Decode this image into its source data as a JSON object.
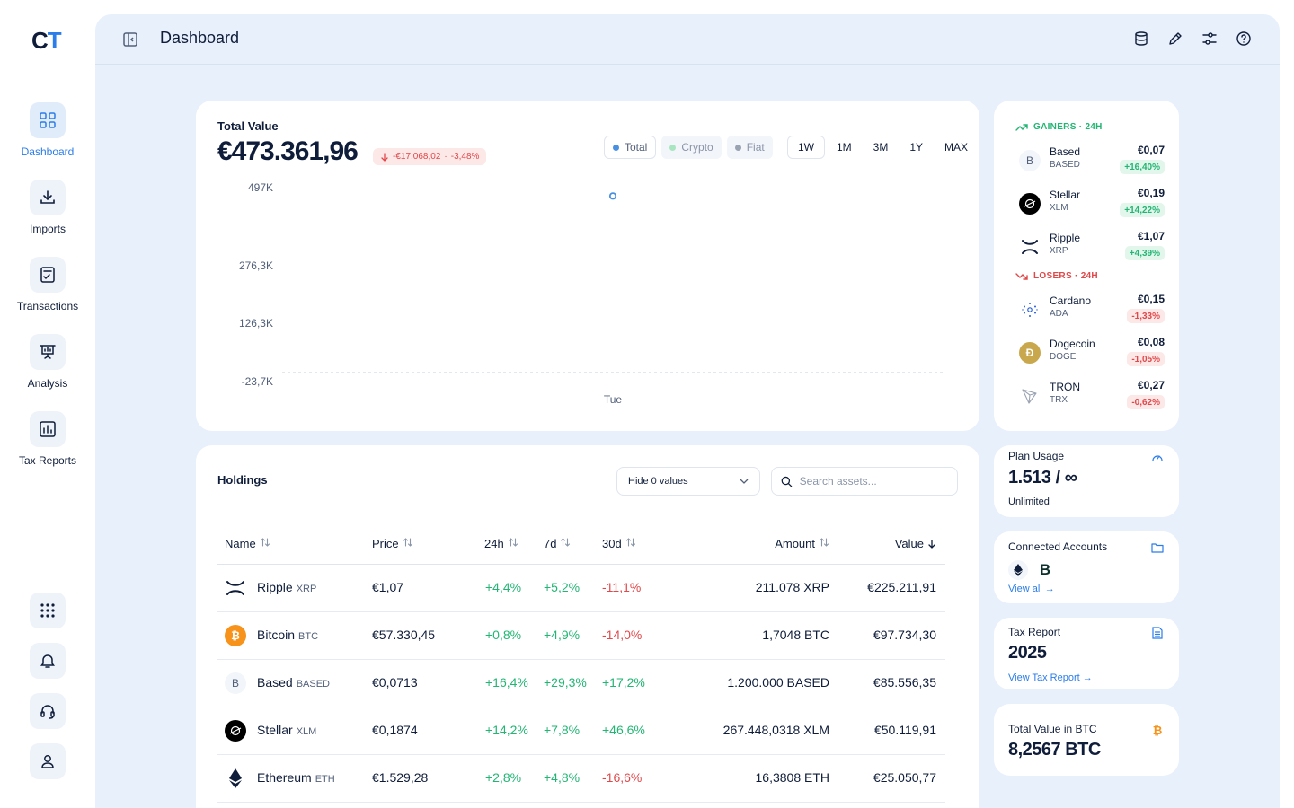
{
  "app": {
    "logo_c": "C",
    "logo_t": "T",
    "page_title": "Dashboard"
  },
  "nav": [
    {
      "label": "Dashboard",
      "icon": "grid-icon"
    },
    {
      "label": "Imports",
      "icon": "download-icon"
    },
    {
      "label": "Transactions",
      "icon": "transactions-icon"
    },
    {
      "label": "Analysis",
      "icon": "presentation-chart-icon"
    },
    {
      "label": "Tax Reports",
      "icon": "bar-report-icon"
    }
  ],
  "bottom_nav": [
    "apps-grid-icon",
    "bell-icon",
    "headset-icon",
    "user-icon"
  ],
  "top_icons": [
    "database-icon",
    "pencil-icon",
    "sliders-icon",
    "help-icon"
  ],
  "total_value": {
    "label": "Total Value",
    "value": "€473.361,96",
    "change_abs": "-€17.068,02",
    "change_sep": "·",
    "change_pct": "-3,48%",
    "legend": [
      {
        "label": "Total",
        "color": "#4a90e2",
        "on": true
      },
      {
        "label": "Crypto",
        "color": "#a8e6c1",
        "on": false
      },
      {
        "label": "Fiat",
        "color": "#9aa3b2",
        "on": false
      }
    ],
    "ranges": [
      "1W",
      "1M",
      "3M",
      "1Y",
      "MAX"
    ],
    "selected_range": "1W"
  },
  "chart_data": {
    "type": "line",
    "y_ticks": [
      "497K",
      "276,3K",
      "126,3K",
      "-23,7K"
    ],
    "x_ticks": [
      "Tue"
    ],
    "series": [
      {
        "name": "Total",
        "x": [
          "Tue"
        ],
        "values": [
          473361.96
        ]
      }
    ],
    "ylim": [
      -23700,
      497000
    ]
  },
  "gainers": {
    "title": "GAINERS · 24H",
    "items": [
      {
        "name": "Based",
        "symbol": "BASED",
        "price": "€0,07",
        "pct": "+16,40%"
      },
      {
        "name": "Stellar",
        "symbol": "XLM",
        "price": "€0,19",
        "pct": "+14,22%"
      },
      {
        "name": "Ripple",
        "symbol": "XRP",
        "price": "€1,07",
        "pct": "+4,39%"
      }
    ]
  },
  "losers": {
    "title": "LOSERS · 24H",
    "items": [
      {
        "name": "Cardano",
        "symbol": "ADA",
        "price": "€0,15",
        "pct": "-1,33%"
      },
      {
        "name": "Dogecoin",
        "symbol": "DOGE",
        "price": "€0,08",
        "pct": "-1,05%"
      },
      {
        "name": "TRON",
        "symbol": "TRX",
        "price": "€0,27",
        "pct": "-0,62%"
      }
    ]
  },
  "plan": {
    "title": "Plan Usage",
    "value": "1.513 / ∞",
    "sub": "Unlimited"
  },
  "accounts": {
    "title": "Connected Accounts",
    "link": "View all →"
  },
  "tax": {
    "title": "Tax Report",
    "year": "2025",
    "link": "View Tax Report →"
  },
  "btc_total": {
    "title": "Total Value in BTC",
    "value": "8,2567 BTC"
  },
  "holdings": {
    "title": "Holdings",
    "filter": "Hide 0 values",
    "search_placeholder": "Search assets...",
    "columns": [
      "Name",
      "Price",
      "24h",
      "7d",
      "30d",
      "Amount",
      "Value"
    ],
    "rows": [
      {
        "name": "Ripple",
        "symbol": "XRP",
        "price": "€1,07",
        "d24": "+4,4%",
        "d7": "+5,2%",
        "d30": "-11,1%",
        "amount": "211.078 XRP",
        "value": "€225.211,91"
      },
      {
        "name": "Bitcoin",
        "symbol": "BTC",
        "price": "€57.330,45",
        "d24": "+0,8%",
        "d7": "+4,9%",
        "d30": "-14,0%",
        "amount": "1,7048 BTC",
        "value": "€97.734,30"
      },
      {
        "name": "Based",
        "symbol": "BASED",
        "price": "€0,0713",
        "d24": "+16,4%",
        "d7": "+29,3%",
        "d30": "+17,2%",
        "amount": "1.200.000 BASED",
        "value": "€85.556,35"
      },
      {
        "name": "Stellar",
        "symbol": "XLM",
        "price": "€0,1874",
        "d24": "+14,2%",
        "d7": "+7,8%",
        "d30": "+46,6%",
        "amount": "267.448,0318 XLM",
        "value": "€50.119,91"
      },
      {
        "name": "Ethereum",
        "symbol": "ETH",
        "price": "€1.529,28",
        "d24": "+2,8%",
        "d7": "+4,8%",
        "d30": "-16,6%",
        "amount": "16,3808 ETH",
        "value": "€25.050,77"
      }
    ]
  },
  "colors": {
    "accent": "#2b7de9",
    "positive": "#22b573",
    "negative": "#e0484a",
    "background": "#e8f0fb"
  }
}
